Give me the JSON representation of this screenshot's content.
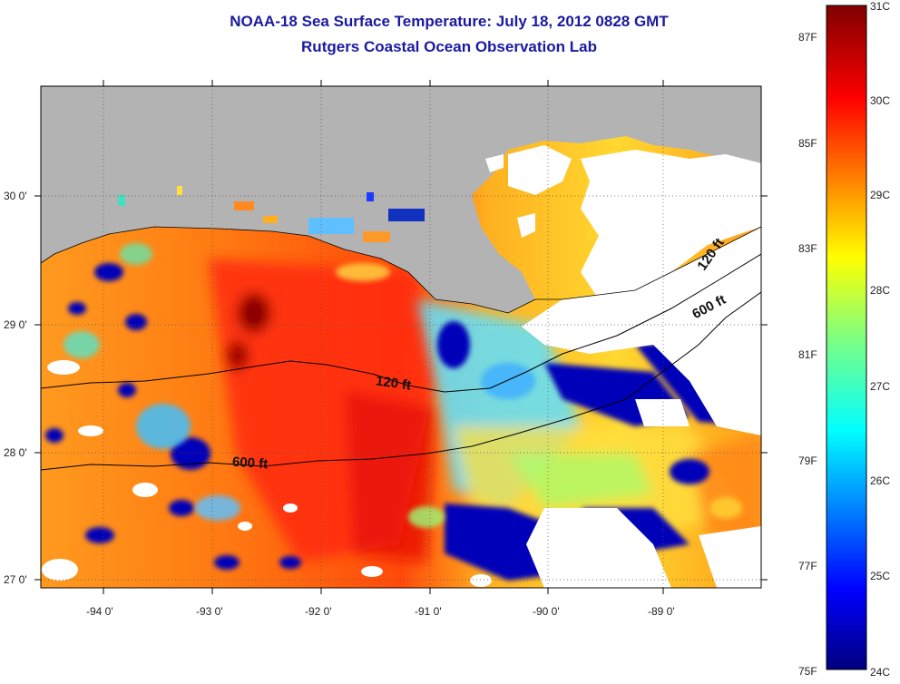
{
  "header": {
    "title": "NOAA-18 Sea Surface Temperature:  July 18, 2012 0828 GMT",
    "subtitle": "Rutgers Coastal Ocean Observation Lab"
  },
  "map": {
    "lat_ticks": [
      "30 0'",
      "29 0'",
      "28 0'",
      "27 0'"
    ],
    "lon_ticks": [
      "-94 0'",
      "-93 0'",
      "-92 0'",
      "-91 0'",
      "-90 0'",
      "-89 0'"
    ],
    "contour_labels": [
      "120 ft",
      "600 ft",
      "120 ft",
      "600 ft"
    ],
    "colors": {
      "land": "#b3b3b3",
      "cloud": "#ffffff",
      "frame": "#000000"
    }
  },
  "colorbar": {
    "celsius": [
      "31C",
      "30C",
      "29C",
      "28C",
      "27C",
      "26C",
      "25C",
      "24C"
    ],
    "fahrenheit": [
      "87F",
      "85F",
      "83F",
      "81F",
      "79F",
      "77F",
      "75F"
    ]
  }
}
